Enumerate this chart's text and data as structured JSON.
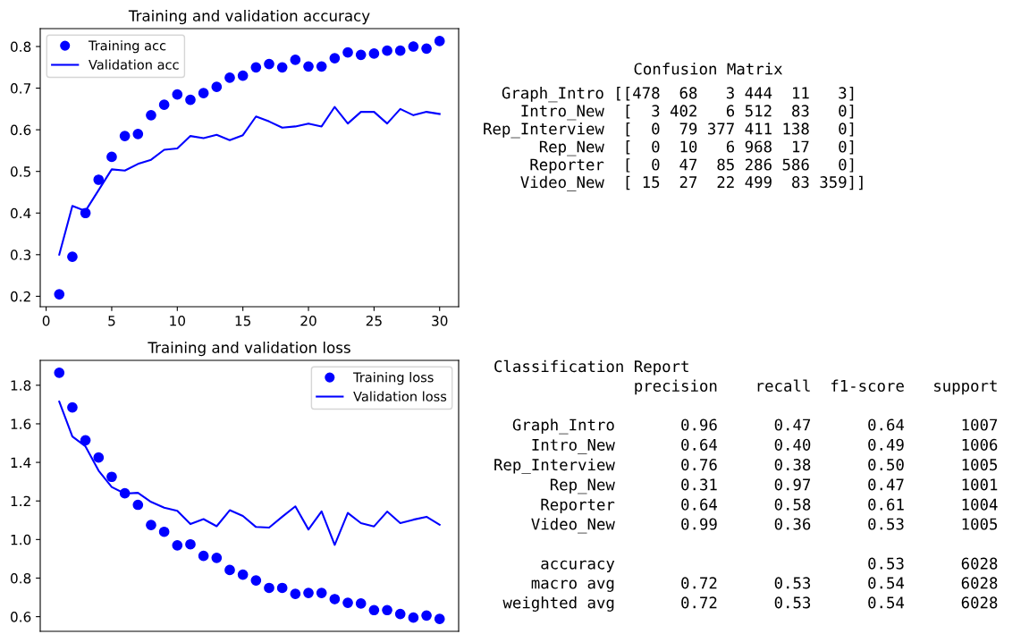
{
  "chart_data": [
    {
      "type": "line",
      "title": "Training and validation accuracy",
      "x": [
        1,
        2,
        3,
        4,
        5,
        6,
        7,
        8,
        9,
        10,
        11,
        12,
        13,
        14,
        15,
        16,
        17,
        18,
        19,
        20,
        21,
        22,
        23,
        24,
        25,
        26,
        27,
        28,
        29,
        30
      ],
      "xlim": [
        -0.45,
        31.45
      ],
      "xticks": [
        0,
        5,
        10,
        15,
        20,
        25,
        30
      ],
      "ylim": [
        0.175,
        0.843
      ],
      "yticks": [
        0.2,
        0.3,
        0.4,
        0.5,
        0.6,
        0.7,
        0.8
      ],
      "legend": "top left",
      "series": [
        {
          "name": "Training acc",
          "type": "scatter",
          "marker": "circle",
          "color": "#0000ff",
          "values": [
            0.205,
            0.295,
            0.4,
            0.48,
            0.535,
            0.585,
            0.59,
            0.635,
            0.66,
            0.685,
            0.672,
            0.688,
            0.703,
            0.725,
            0.73,
            0.75,
            0.758,
            0.75,
            0.768,
            0.752,
            0.752,
            0.772,
            0.786,
            0.78,
            0.783,
            0.79,
            0.79,
            0.8,
            0.795,
            0.813
          ]
        },
        {
          "name": "Validation acc",
          "type": "line",
          "color": "#0000ff",
          "values": [
            0.3,
            0.417,
            0.405,
            0.455,
            0.505,
            0.502,
            0.518,
            0.528,
            0.552,
            0.555,
            0.585,
            0.58,
            0.588,
            0.575,
            0.587,
            0.632,
            0.62,
            0.605,
            0.608,
            0.615,
            0.608,
            0.655,
            0.615,
            0.643,
            0.643,
            0.615,
            0.65,
            0.635,
            0.643,
            0.638
          ]
        }
      ]
    },
    {
      "type": "other",
      "title": "Confusion Matrix",
      "annotations": [
        "  Graph_Intro [[478  68   3 444  11   3]\n    Intro_New  [  3 402   6 512  83   0]\nRep_Interview  [  0  79 377 411 138   0]\n      Rep_New  [  0  10   6 968  17   0]\n     Reporter  [  0  47  85 286 586   0]\n    Video_New  [ 15  27  22 499  83 359]]"
      ]
    },
    {
      "type": "line",
      "title": "Training and validation loss",
      "x": [
        1,
        2,
        3,
        4,
        5,
        6,
        7,
        8,
        9,
        10,
        11,
        12,
        13,
        14,
        15,
        16,
        17,
        18,
        19,
        20,
        21,
        22,
        23,
        24,
        25,
        26,
        27,
        28,
        29,
        30
      ],
      "xlim": [
        -0.45,
        31.45
      ],
      "ylim": [
        0.524,
        1.929
      ],
      "yticks": [
        0.6,
        0.8,
        {
          "value": 1.0,
          "label": "1.0"
        },
        1.2,
        1.4,
        1.6,
        1.8
      ],
      "tick_labels": "y",
      "legend": "top right",
      "series": [
        {
          "name": "Training loss",
          "type": "scatter",
          "marker": "circle",
          "color": "#0000ff",
          "values": [
            1.865,
            1.685,
            1.515,
            1.425,
            1.325,
            1.24,
            1.18,
            1.075,
            1.04,
            0.97,
            0.975,
            0.915,
            0.905,
            0.842,
            0.818,
            0.788,
            0.749,
            0.749,
            0.718,
            0.723,
            0.723,
            0.691,
            0.672,
            0.668,
            0.634,
            0.634,
            0.614,
            0.595,
            0.606,
            0.588
          ]
        },
        {
          "name": "Validation loss",
          "type": "line",
          "color": "#0000ff",
          "values": [
            1.715,
            1.534,
            1.483,
            1.357,
            1.272,
            1.238,
            1.242,
            1.195,
            1.165,
            1.149,
            1.08,
            1.106,
            1.069,
            1.152,
            1.122,
            1.065,
            1.062,
            1.118,
            1.172,
            1.052,
            1.146,
            0.972,
            1.138,
            1.085,
            1.068,
            1.145,
            1.085,
            1.103,
            1.118,
            1.077
          ]
        }
      ]
    },
    {
      "type": "other",
      "title": "Classification Report",
      "annotations": [
        "               precision    recall  f1-score   support\n\n  Graph_Intro       0.96      0.47      0.64      1007\n    Intro_New       0.64      0.40      0.49      1006\nRep_Interview       0.76      0.38      0.50      1005\n      Rep_New       0.31      0.97      0.47      1001\n     Reporter       0.64      0.58      0.61      1004\n    Video_New       0.99      0.36      0.53      1005\n\n     accuracy                           0.53      6028\n    macro avg       0.72      0.53      0.54      6028\n weighted avg       0.72      0.53      0.54      6028"
      ]
    }
  ]
}
